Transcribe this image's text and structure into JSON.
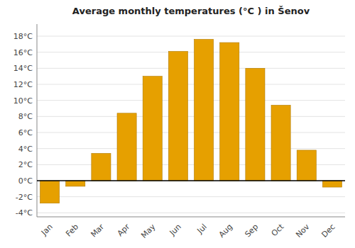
{
  "chart_data": {
    "type": "bar",
    "title": "Average monthly temperatures (°C ) in Šenov",
    "categories": [
      "Jan",
      "Feb",
      "Mar",
      "Apr",
      "May",
      "Jun",
      "Jul",
      "Aug",
      "Sep",
      "Oct",
      "Nov",
      "Dec"
    ],
    "values": [
      -2.8,
      -0.7,
      3.4,
      8.4,
      13.0,
      16.1,
      17.6,
      17.2,
      14.0,
      9.4,
      3.8,
      -0.8
    ],
    "color": "#E6A000",
    "ylim": [
      -4.5,
      19.5
    ],
    "yticks": [
      {
        "value": -4,
        "label": "-4°C"
      },
      {
        "value": -2,
        "label": "-2°C"
      },
      {
        "value": 0,
        "label": "0°C"
      },
      {
        "value": 2,
        "label": "2°C"
      },
      {
        "value": 4,
        "label": "4°C"
      },
      {
        "value": 6,
        "label": "6°C"
      },
      {
        "value": 8,
        "label": "8°C"
      },
      {
        "value": 10,
        "label": "10°C"
      },
      {
        "value": 12,
        "label": "12°C"
      },
      {
        "value": 14,
        "label": "14°C"
      },
      {
        "value": 16,
        "label": "16°C"
      },
      {
        "value": 18,
        "label": "18°C"
      }
    ],
    "grid": true
  }
}
